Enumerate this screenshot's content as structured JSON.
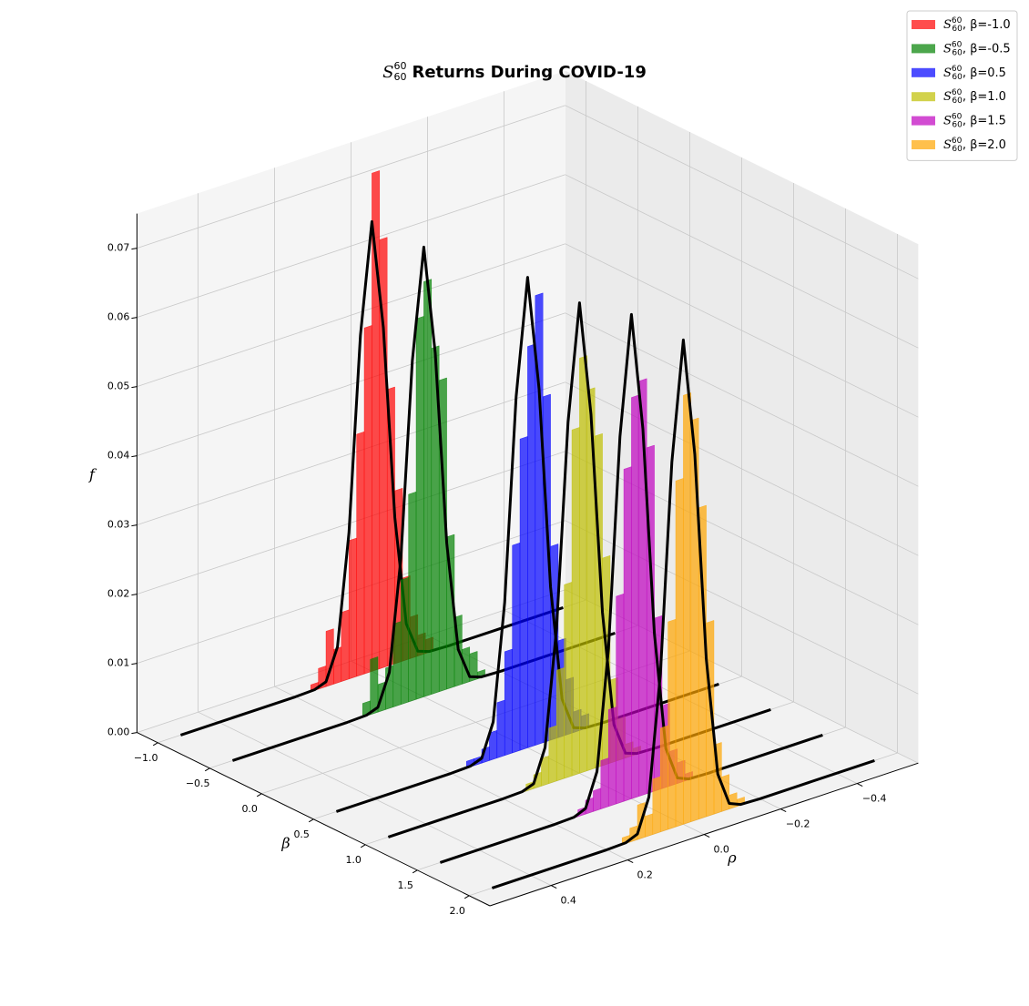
{
  "chart_data": {
    "type": "histogram3d",
    "symbol": {
      "base": "S",
      "sup": "60",
      "sub": "60",
      "separator": ", "
    },
    "title": "Returns During COVID-19",
    "xlabel": "β",
    "ylabel": "ρ",
    "zlabel": "f",
    "xlim": [
      -1.2,
      2.2
    ],
    "ylim": [
      -0.56,
      0.56
    ],
    "zlim": [
      0,
      0.075
    ],
    "xticks": [
      {
        "value": -1.0,
        "label": "−1.0"
      },
      {
        "value": -0.5,
        "label": "−0.5"
      },
      {
        "value": 0.0,
        "label": "0.0"
      },
      {
        "value": 0.5,
        "label": "0.5"
      },
      {
        "value": 1.0,
        "label": "1.0"
      },
      {
        "value": 1.5,
        "label": "1.5"
      },
      {
        "value": 2.0,
        "label": "2.0"
      }
    ],
    "yticks": [
      {
        "value": -0.4,
        "label": "−0.4"
      },
      {
        "value": -0.2,
        "label": "−0.2"
      },
      {
        "value": 0.0,
        "label": "0.0"
      },
      {
        "value": 0.2,
        "label": "0.2"
      },
      {
        "value": 0.4,
        "label": "0.4"
      }
    ],
    "zticks": [
      {
        "value": 0,
        "label": "0.00"
      },
      0.01,
      0.02,
      0.03,
      0.04,
      0.05,
      0.06,
      0.07
    ],
    "grid": true,
    "legend": "upper right",
    "bins": [
      -0.16,
      -0.14,
      -0.12,
      -0.1,
      -0.08,
      -0.06,
      -0.04,
      -0.02,
      0,
      0.02,
      0.04,
      0.06,
      0.08,
      0.1,
      0.12,
      0.14,
      0.16
    ],
    "curve_x": [
      -0.5,
      -0.3,
      -0.2,
      -0.15,
      -0.12,
      -0.09,
      -0.06,
      -0.03,
      0,
      0.03,
      0.06,
      0.09,
      0.12,
      0.15,
      0.2,
      0.3,
      0.5
    ],
    "series": [
      {
        "name": "β=-1.0",
        "beta": -1.0,
        "color": "#ff0000",
        "values": [
          0.002,
          0.003,
          0.006,
          0.012,
          0.025,
          0.04,
          0.062,
          0.072,
          0.05,
          0.035,
          0.02,
          0.01,
          0.005,
          0.008,
          0.003,
          0.001
        ],
        "curve": [
          0,
          0,
          0,
          0.0001,
          0.0007,
          0.0052,
          0.0211,
          0.0491,
          0.065,
          0.0491,
          0.0211,
          0.0052,
          0.0007,
          0.0001,
          0,
          0,
          0
        ]
      },
      {
        "name": "β=-0.5",
        "beta": -0.5,
        "color": "#008000",
        "values": [
          0.001,
          0.004,
          0.005,
          0.01,
          0.022,
          0.045,
          0.05,
          0.06,
          0.055,
          0.03,
          0.018,
          0.012,
          0.006,
          0.004,
          0.008,
          0.002
        ],
        "curve": [
          0,
          0,
          0,
          0.0001,
          0.0007,
          0.0052,
          0.0211,
          0.0491,
          0.065,
          0.0491,
          0.0211,
          0.0052,
          0.0007,
          0.0001,
          0,
          0,
          0
        ]
      },
      {
        "name": "β=0.5",
        "beta": 0.5,
        "color": "#0000ff",
        "values": [
          0.002,
          0.003,
          0.008,
          0.014,
          0.028,
          0.05,
          0.065,
          0.058,
          0.045,
          0.03,
          0.015,
          0.008,
          0.004,
          0.002,
          0.001,
          0.001
        ],
        "curve": [
          0,
          0,
          0,
          0.0001,
          0.0007,
          0.0054,
          0.0221,
          0.0513,
          0.068,
          0.0513,
          0.0221,
          0.0054,
          0.0007,
          0.0001,
          0,
          0,
          0
        ]
      },
      {
        "name": "β=1.0",
        "beta": 1.0,
        "color": "#bfbf00",
        "values": [
          0.001,
          0.002,
          0.006,
          0.012,
          0.03,
          0.048,
          0.055,
          0.06,
          0.05,
          0.028,
          0.016,
          0.008,
          0.004,
          0.002,
          0.001,
          0
        ],
        "curve": [
          0,
          0,
          0,
          0.0001,
          0.0007,
          0.0054,
          0.0221,
          0.0513,
          0.068,
          0.0513,
          0.0221,
          0.0054,
          0.0007,
          0.0001,
          0,
          0,
          0
        ]
      },
      {
        "name": "β=1.5",
        "beta": 1.5,
        "color": "#bf00bf",
        "values": [
          0.001,
          0.003,
          0.005,
          0.012,
          0.025,
          0.05,
          0.06,
          0.058,
          0.048,
          0.03,
          0.014,
          0.007,
          0.003,
          0.002,
          0.001,
          0
        ],
        "curve": [
          0,
          0,
          0,
          0.0001,
          0.0008,
          0.0056,
          0.0228,
          0.0529,
          0.07,
          0.0529,
          0.0228,
          0.0056,
          0.0008,
          0.0001,
          0,
          0,
          0
        ]
      },
      {
        "name": "β=2.0",
        "beta": 2.0,
        "color": "#ffa500",
        "values": [
          0.001,
          0.002,
          0.005,
          0.01,
          0.028,
          0.045,
          0.058,
          0.062,
          0.05,
          0.03,
          0.015,
          0.008,
          0.003,
          0.005,
          0.002,
          0.001
        ],
        "curve": [
          0,
          0,
          0,
          0.0001,
          0.0008,
          0.0056,
          0.0228,
          0.0529,
          0.07,
          0.0529,
          0.0228,
          0.0056,
          0.0008,
          0.0001,
          0,
          0,
          0
        ]
      }
    ]
  }
}
